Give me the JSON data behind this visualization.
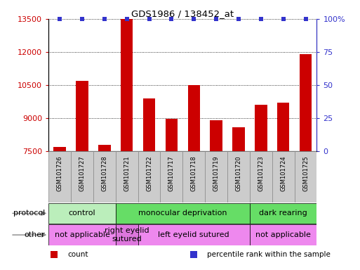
{
  "title": "GDS1986 / 138452_at",
  "samples": [
    "GSM101726",
    "GSM101727",
    "GSM101728",
    "GSM101721",
    "GSM101722",
    "GSM101717",
    "GSM101718",
    "GSM101719",
    "GSM101720",
    "GSM101723",
    "GSM101724",
    "GSM101725"
  ],
  "counts": [
    7700,
    10700,
    7800,
    13500,
    9900,
    8980,
    10500,
    8900,
    8600,
    9600,
    9700,
    11900
  ],
  "percentiles": [
    100,
    100,
    100,
    100,
    100,
    100,
    100,
    100,
    100,
    100,
    100,
    100
  ],
  "ylim_left": [
    7500,
    13500
  ],
  "ylim_right": [
    0,
    100
  ],
  "yticks_left": [
    7500,
    9000,
    10500,
    12000,
    13500
  ],
  "yticks_right": [
    0,
    25,
    50,
    75,
    100
  ],
  "bar_color": "#cc0000",
  "percentile_color": "#3333cc",
  "protocol_groups": [
    {
      "label": "control",
      "start": 0,
      "end": 3,
      "color": "#bbeebb"
    },
    {
      "label": "monocular deprivation",
      "start": 3,
      "end": 9,
      "color": "#66dd66"
    },
    {
      "label": "dark rearing",
      "start": 9,
      "end": 12,
      "color": "#66dd66"
    }
  ],
  "other_groups": [
    {
      "label": "not applicable",
      "start": 0,
      "end": 3,
      "color": "#ee88ee"
    },
    {
      "label": "right eyelid\nsutured",
      "start": 3,
      "end": 4,
      "color": "#dd77dd"
    },
    {
      "label": "left eyelid sutured",
      "start": 4,
      "end": 9,
      "color": "#ee88ee"
    },
    {
      "label": "not applicable",
      "start": 9,
      "end": 12,
      "color": "#ee88ee"
    }
  ],
  "legend_items": [
    {
      "label": "count",
      "color": "#cc0000"
    },
    {
      "label": "percentile rank within the sample",
      "color": "#3333cc"
    }
  ],
  "xlabel_protocol": "protocol",
  "xlabel_other": "other",
  "bar_width": 0.55,
  "sample_box_color": "#cccccc",
  "sample_box_edge": "#888888"
}
